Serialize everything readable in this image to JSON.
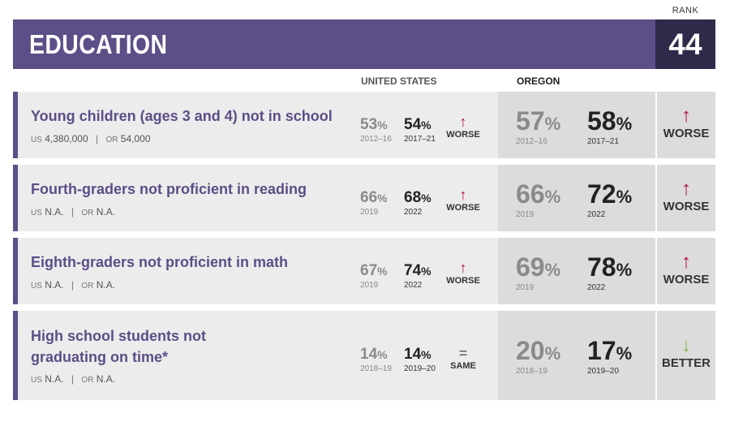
{
  "header": {
    "title": "EDUCATION",
    "rank_label": "RANK",
    "rank": "44"
  },
  "columns": {
    "us": "UNITED STATES",
    "oregon": "OREGON"
  },
  "colors": {
    "brand": "#5c4e87",
    "rank_box": "#2f2a4a",
    "worse": "#b5103c",
    "better": "#7ab648"
  },
  "rows": [
    {
      "title": "Young children (ages 3 and 4) not in school",
      "sub_us_key": "US",
      "sub_us_val": "4,380,000",
      "sub_sep": "|",
      "sub_or_key": "OR",
      "sub_or_val": "54,000",
      "us_old": "53",
      "us_old_year": "2012–16",
      "us_new": "54",
      "us_new_year": "2017–21",
      "us_trend_icon": "↑",
      "us_trend": "WORSE",
      "or_old": "57",
      "or_old_year": "2012–16",
      "or_new": "58",
      "or_new_year": "2017–21",
      "or_trend_icon": "↑",
      "or_trend": "WORSE",
      "pct": "%"
    },
    {
      "title": "Fourth-graders not proficient in reading",
      "sub_us_key": "US",
      "sub_us_val": "N.A.",
      "sub_sep": "|",
      "sub_or_key": "OR",
      "sub_or_val": "N.A.",
      "us_old": "66",
      "us_old_year": "2019",
      "us_new": "68",
      "us_new_year": "2022",
      "us_trend_icon": "↑",
      "us_trend": "WORSE",
      "or_old": "66",
      "or_old_year": "2019",
      "or_new": "72",
      "or_new_year": "2022",
      "or_trend_icon": "↑",
      "or_trend": "WORSE",
      "pct": "%"
    },
    {
      "title": "Eighth-graders not proficient in math",
      "sub_us_key": "US",
      "sub_us_val": "N.A.",
      "sub_sep": "|",
      "sub_or_key": "OR",
      "sub_or_val": "N.A.",
      "us_old": "67",
      "us_old_year": "2019",
      "us_new": "74",
      "us_new_year": "2022",
      "us_trend_icon": "↑",
      "us_trend": "WORSE",
      "or_old": "69",
      "or_old_year": "2019",
      "or_new": "78",
      "or_new_year": "2022",
      "or_trend_icon": "↑",
      "or_trend": "WORSE",
      "pct": "%"
    },
    {
      "title": "High school students not graduating on time*",
      "sub_us_key": "US",
      "sub_us_val": "N.A.",
      "sub_sep": "|",
      "sub_or_key": "OR",
      "sub_or_val": "N.A.",
      "us_old": "14",
      "us_old_year": "2018–19",
      "us_new": "14",
      "us_new_year": "2019–20",
      "us_trend_icon": "=",
      "us_trend": "SAME",
      "or_old": "20",
      "or_old_year": "2018–19",
      "or_new": "17",
      "or_new_year": "2019–20",
      "or_trend_icon": "↓",
      "or_trend": "BETTER",
      "pct": "%"
    }
  ]
}
